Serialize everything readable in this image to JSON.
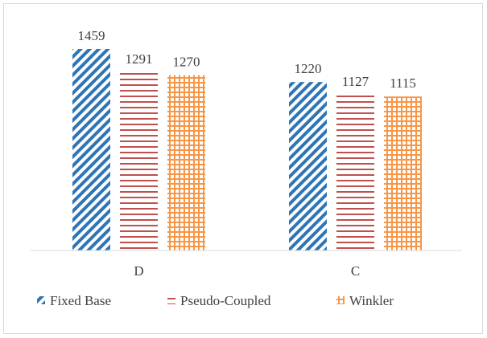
{
  "chart_data": {
    "type": "bar",
    "categories": [
      "D",
      "C"
    ],
    "series": [
      {
        "name": "Fixed Base",
        "values": [
          1459,
          1220
        ],
        "color": "#2e75b6",
        "pattern": "diagonal-stripes"
      },
      {
        "name": "Pseudo-Coupled",
        "values": [
          1291,
          1127
        ],
        "color": "#c0504d",
        "pattern": "horizontal-stripes"
      },
      {
        "name": "Winkler",
        "values": [
          1270,
          1115
        ],
        "color": "#f79646",
        "pattern": "grid"
      }
    ],
    "title": "",
    "xlabel": "",
    "ylabel": "",
    "ylim": [
      0,
      1459
    ],
    "grid": false,
    "data_labels": true,
    "legend_position": "bottom"
  }
}
